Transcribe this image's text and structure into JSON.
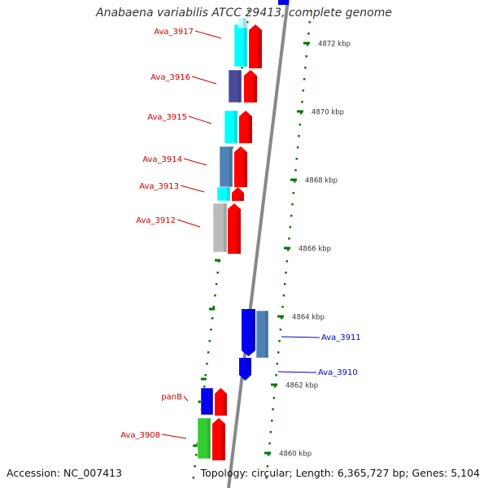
{
  "title": "Anabaena variabilis ATCC 29413, complete genome",
  "footer": {
    "accession": "Accession: NC_007413",
    "summary": "Topology: circular; Length: 6,365,727 bp; Genes: 5,104"
  },
  "kbp_labels": [
    "4872 kbp",
    "4870 kbp",
    "4868 kbp",
    "4866 kbp",
    "4864 kbp",
    "4862 kbp",
    "4860 kbp"
  ],
  "genes": [
    {
      "name": "Ava_3917",
      "strand": "forward",
      "color": "#ff0000",
      "label_color": "#cc0000"
    },
    {
      "name": "Ava_3916",
      "strand": "forward",
      "color": "#ff0000",
      "label_color": "#cc0000"
    },
    {
      "name": "Ava_3915",
      "strand": "forward",
      "color": "#ff0000",
      "label_color": "#cc0000"
    },
    {
      "name": "Ava_3914",
      "strand": "forward",
      "color": "#ff0000",
      "label_color": "#cc0000"
    },
    {
      "name": "Ava_3913",
      "strand": "forward",
      "color": "#ff0000",
      "label_color": "#cc0000"
    },
    {
      "name": "Ava_3912",
      "strand": "forward",
      "color": "#ff0000",
      "label_color": "#cc0000"
    },
    {
      "name": "Ava_3911",
      "strand": "reverse",
      "color": "#0000ee",
      "label_color": "#0000cc"
    },
    {
      "name": "Ava_3910",
      "strand": "reverse",
      "color": "#0000ee",
      "label_color": "#0000cc"
    },
    {
      "name": "panB",
      "strand": "forward",
      "color": "#ff0000",
      "label_color": "#cc0000"
    },
    {
      "name": "Ava_3908",
      "strand": "forward",
      "color": "#ff0000",
      "label_color": "#cc0000"
    }
  ],
  "cog_colors": {
    "cyan": "#00ffff",
    "dark_slate_blue": "#4a4a9a",
    "steel_blue": "#4f82b4",
    "silver": "#bbbbbb",
    "blue": "#0000ee",
    "green": "#33cc33"
  },
  "colors": {
    "backbone": "#888888",
    "tick": "#007700",
    "kbp_text": "#333333"
  }
}
